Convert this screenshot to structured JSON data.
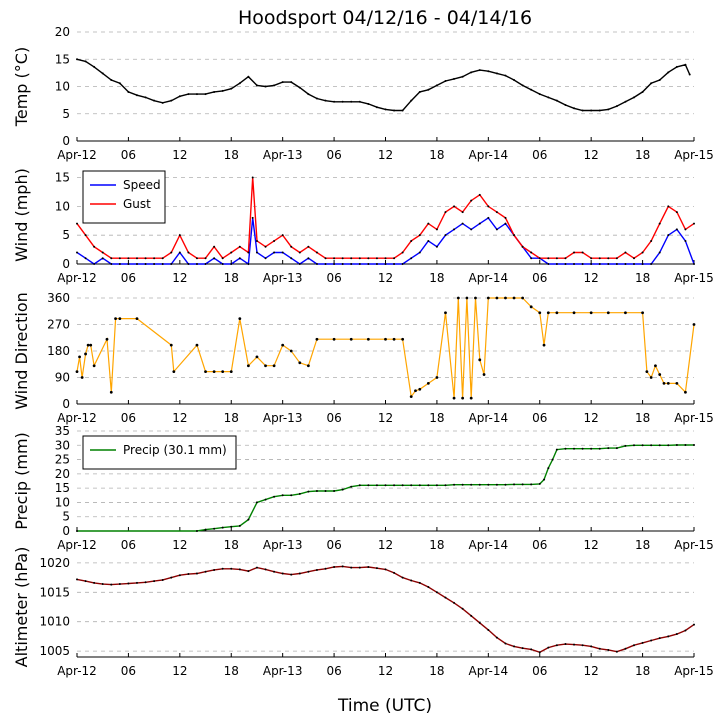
{
  "figure": {
    "title": "Hoodsport 04/12/16 - 04/14/16",
    "xlabel": "Time (UTC)",
    "x_ticks": [
      "Apr-12",
      "06",
      "12",
      "18",
      "Apr-13",
      "06",
      "12",
      "18",
      "Apr-14",
      "06",
      "12",
      "18",
      "Apr-15"
    ],
    "x_range_hours": [
      0,
      72
    ]
  },
  "colors": {
    "temp": "#000000",
    "speed": "#0000ff",
    "gust": "#ff0000",
    "direction_line": "#ffa500",
    "direction_marker": "#000000",
    "precip": "#008000",
    "altimeter": "#8b0000",
    "grid": "#b0b0b0"
  },
  "chart_data": [
    {
      "type": "line",
      "id": "temp",
      "ylabel": "Temp (°C)",
      "ylim": [
        0,
        20
      ],
      "yticks": [
        0,
        5,
        10,
        15,
        20
      ],
      "grid": true,
      "series": [
        {
          "name": "Temp",
          "color_key": "temp",
          "x": [
            0,
            1,
            2,
            3,
            4,
            5,
            6,
            7,
            8,
            9,
            10,
            11,
            12,
            13,
            14,
            15,
            16,
            17,
            18,
            19,
            20,
            21,
            22,
            23,
            24,
            25,
            26,
            27,
            28,
            29,
            30,
            31,
            32,
            33,
            34,
            35,
            36,
            37,
            38,
            39,
            40,
            41,
            42,
            43,
            44,
            45,
            46,
            47,
            48,
            49,
            50,
            51,
            52,
            53,
            54,
            55,
            56,
            57,
            58,
            59,
            60,
            61,
            62,
            63,
            64,
            65,
            66,
            67,
            68,
            69,
            70,
            71,
            71.5
          ],
          "values": [
            15,
            14.6,
            13.6,
            12.4,
            11.2,
            10.6,
            9,
            8.4,
            8,
            7.4,
            7,
            7.4,
            8.2,
            8.6,
            8.6,
            8.6,
            9,
            9.2,
            9.6,
            10.6,
            11.8,
            10.2,
            10,
            10.2,
            10.8,
            10.8,
            9.8,
            8.6,
            7.8,
            7.4,
            7.2,
            7.2,
            7.2,
            7.2,
            6.8,
            6.2,
            5.8,
            5.6,
            5.6,
            7.4,
            9,
            9.4,
            10.2,
            11,
            11.4,
            11.8,
            12.6,
            13,
            12.8,
            12.4,
            12,
            11.2,
            10.2,
            9.4,
            8.6,
            8,
            7.4,
            6.6,
            6,
            5.6,
            5.6,
            5.6,
            5.8,
            6.4,
            7.2,
            8,
            9,
            10.6,
            11.2,
            12.6,
            13.6,
            14,
            12.2
          ]
        }
      ]
    },
    {
      "type": "line",
      "id": "wind",
      "ylabel": "Wind (mph)",
      "ylim": [
        0,
        17
      ],
      "yticks": [
        0,
        5,
        10,
        15
      ],
      "grid": true,
      "legend": "top-left",
      "series": [
        {
          "name": "Speed",
          "color_key": "speed",
          "x": [
            0,
            1,
            2,
            3,
            4,
            5,
            6,
            7,
            8,
            9,
            10,
            11,
            12,
            13,
            14,
            15,
            16,
            17,
            18,
            19,
            20,
            20.5,
            21,
            22,
            23,
            24,
            25,
            26,
            27,
            28,
            29,
            30,
            31,
            32,
            33,
            34,
            35,
            36,
            37,
            38,
            39,
            40,
            41,
            42,
            43,
            44,
            45,
            46,
            47,
            48,
            49,
            50,
            51,
            52,
            53,
            54,
            55,
            56,
            57,
            58,
            59,
            60,
            61,
            62,
            63,
            64,
            65,
            66,
            67,
            68,
            69,
            70,
            71,
            72
          ],
          "values": [
            2,
            1,
            0,
            1,
            0,
            0,
            0,
            0,
            0,
            0,
            0,
            0,
            2,
            0,
            0,
            0,
            1,
            0,
            0,
            1,
            0,
            8,
            2,
            1,
            2,
            2,
            1,
            0,
            1,
            0,
            0,
            0,
            0,
            0,
            0,
            0,
            0,
            0,
            0,
            0,
            1,
            2,
            4,
            3,
            5,
            6,
            7,
            6,
            7,
            8,
            6,
            7,
            5,
            3,
            1,
            1,
            0,
            0,
            0,
            0,
            0,
            0,
            0,
            0,
            0,
            0,
            0,
            0,
            0,
            2,
            5,
            6,
            4,
            0
          ]
        },
        {
          "name": "Gust",
          "color_key": "gust",
          "x": [
            0,
            1,
            2,
            3,
            4,
            5,
            6,
            7,
            8,
            9,
            10,
            11,
            12,
            13,
            14,
            15,
            16,
            17,
            18,
            19,
            20,
            20.5,
            21,
            22,
            23,
            24,
            25,
            26,
            27,
            28,
            29,
            30,
            31,
            32,
            33,
            34,
            35,
            36,
            37,
            38,
            39,
            40,
            41,
            42,
            43,
            44,
            45,
            46,
            47,
            48,
            49,
            50,
            51,
            52,
            53,
            54,
            55,
            56,
            57,
            58,
            59,
            60,
            61,
            62,
            63,
            64,
            65,
            66,
            67,
            68,
            69,
            70,
            71,
            72
          ],
          "values": [
            7,
            5,
            3,
            2,
            1,
            1,
            1,
            1,
            1,
            1,
            1,
            2,
            5,
            2,
            1,
            1,
            3,
            1,
            2,
            3,
            2,
            15,
            4,
            3,
            4,
            5,
            3,
            2,
            3,
            2,
            1,
            1,
            1,
            1,
            1,
            1,
            1,
            1,
            1,
            2,
            4,
            5,
            7,
            6,
            9,
            10,
            9,
            11,
            12,
            10,
            9,
            8,
            5,
            3,
            2,
            1,
            1,
            1,
            1,
            2,
            2,
            1,
            1,
            1,
            1,
            2,
            1,
            2,
            4,
            7,
            10,
            9,
            6,
            7
          ]
        }
      ]
    },
    {
      "type": "scatter",
      "id": "direction",
      "ylabel": "Wind Direction",
      "ylim": [
        0,
        360
      ],
      "yticks": [
        0,
        90,
        180,
        270,
        360
      ],
      "grid": true,
      "series": [
        {
          "name": "Direction",
          "color_key": "direction_line",
          "x": [
            0,
            0.3,
            0.6,
            1,
            1.3,
            1.6,
            2,
            3.5,
            4,
            4.5,
            5,
            7,
            11,
            11.3,
            14,
            15,
            16,
            17,
            18,
            19,
            20,
            21,
            22,
            23,
            24,
            25,
            26,
            27,
            28,
            30,
            32,
            34,
            36,
            37,
            38,
            39,
            39.5,
            40,
            41,
            42,
            43,
            44,
            44.5,
            45,
            45.5,
            46,
            46.5,
            47,
            47.5,
            48,
            49,
            50,
            51,
            52,
            53,
            54,
            54.5,
            55,
            56,
            58,
            60,
            62,
            64,
            66,
            66.5,
            67,
            67.5,
            68,
            68.5,
            69,
            70,
            71,
            72
          ],
          "values": [
            110,
            160,
            90,
            170,
            200,
            200,
            130,
            220,
            40,
            290,
            290,
            290,
            200,
            110,
            200,
            110,
            110,
            110,
            110,
            290,
            130,
            160,
            130,
            130,
            200,
            180,
            140,
            130,
            220,
            220,
            220,
            220,
            220,
            220,
            220,
            25,
            45,
            50,
            70,
            90,
            310,
            20,
            360,
            20,
            360,
            20,
            360,
            150,
            100,
            360,
            360,
            360,
            360,
            360,
            330,
            310,
            200,
            310,
            310,
            310,
            310,
            310,
            310,
            310,
            110,
            90,
            130,
            100,
            70,
            70,
            70,
            40,
            270
          ]
        }
      ]
    },
    {
      "type": "line",
      "id": "precip",
      "ylabel": "Precip (mm)",
      "ylim": [
        0,
        35
      ],
      "yticks": [
        0,
        5,
        10,
        15,
        20,
        25,
        30,
        35
      ],
      "grid": true,
      "legend": "top-left",
      "series": [
        {
          "name": "Precip (30.1 mm)",
          "color_key": "precip",
          "x": [
            0,
            14,
            15,
            16,
            17,
            18,
            19,
            20,
            21,
            22,
            23,
            24,
            25,
            26,
            27,
            28,
            29,
            30,
            31,
            32,
            33,
            34,
            35,
            36,
            37,
            38,
            39,
            40,
            41,
            42,
            43,
            44,
            45,
            46,
            47,
            48,
            49,
            50,
            51,
            52,
            53,
            54,
            54.5,
            55,
            55.5,
            56,
            57,
            58,
            59,
            60,
            61,
            62,
            63,
            64,
            65,
            66,
            67,
            68,
            69,
            70,
            71,
            72
          ],
          "values": [
            0,
            0,
            0.5,
            0.8,
            1.2,
            1.5,
            1.8,
            4,
            10,
            11,
            12,
            12.5,
            12.5,
            13,
            13.8,
            14,
            14,
            14,
            14.5,
            15.5,
            16,
            16,
            16,
            16,
            16,
            16,
            16,
            16,
            16,
            16,
            16,
            16.2,
            16.2,
            16.2,
            16.2,
            16.2,
            16.2,
            16.2,
            16.3,
            16.3,
            16.3,
            16.5,
            18,
            22,
            25,
            28.5,
            28.8,
            28.8,
            28.8,
            28.8,
            28.8,
            29,
            29,
            29.8,
            30,
            30,
            30,
            30,
            30,
            30.1,
            30.1,
            30.1
          ]
        }
      ]
    },
    {
      "type": "line",
      "id": "altimeter",
      "ylabel": "Altimeter (hPa)",
      "ylim": [
        1004,
        1021
      ],
      "yticks": [
        1005,
        1010,
        1015,
        1020
      ],
      "grid": true,
      "series": [
        {
          "name": "Altimeter",
          "color_key": "altimeter",
          "x": [
            0,
            1,
            2,
            3,
            4,
            5,
            6,
            7,
            8,
            9,
            10,
            11,
            12,
            13,
            14,
            15,
            16,
            17,
            18,
            19,
            20,
            21,
            22,
            23,
            24,
            25,
            26,
            27,
            28,
            29,
            30,
            31,
            32,
            33,
            34,
            35,
            36,
            37,
            38,
            39,
            40,
            41,
            42,
            43,
            44,
            45,
            46,
            47,
            48,
            49,
            50,
            51,
            52,
            53,
            54,
            55,
            56,
            57,
            58,
            59,
            60,
            61,
            62,
            63,
            64,
            65,
            66,
            67,
            68,
            69,
            70,
            71,
            72
          ],
          "values": [
            1017.2,
            1016.9,
            1016.6,
            1016.4,
            1016.3,
            1016.4,
            1016.5,
            1016.6,
            1016.7,
            1016.9,
            1017.1,
            1017.5,
            1017.9,
            1018.1,
            1018.2,
            1018.5,
            1018.8,
            1019.0,
            1019.0,
            1018.9,
            1018.6,
            1019.2,
            1018.9,
            1018.5,
            1018.2,
            1018.0,
            1018.2,
            1018.5,
            1018.8,
            1019.0,
            1019.3,
            1019.4,
            1019.2,
            1019.2,
            1019.3,
            1019.1,
            1018.9,
            1018.3,
            1017.5,
            1017.0,
            1016.6,
            1015.9,
            1015.0,
            1014.1,
            1013.2,
            1012.2,
            1011.0,
            1009.8,
            1008.6,
            1007.3,
            1006.3,
            1005.8,
            1005.5,
            1005.3,
            1004.8,
            1005.6,
            1006.0,
            1006.2,
            1006.1,
            1006.0,
            1005.8,
            1005.4,
            1005.2,
            1004.9,
            1005.4,
            1006.0,
            1006.4,
            1006.8,
            1007.2,
            1007.5,
            1007.9,
            1008.5,
            1009.5
          ]
        }
      ]
    }
  ]
}
